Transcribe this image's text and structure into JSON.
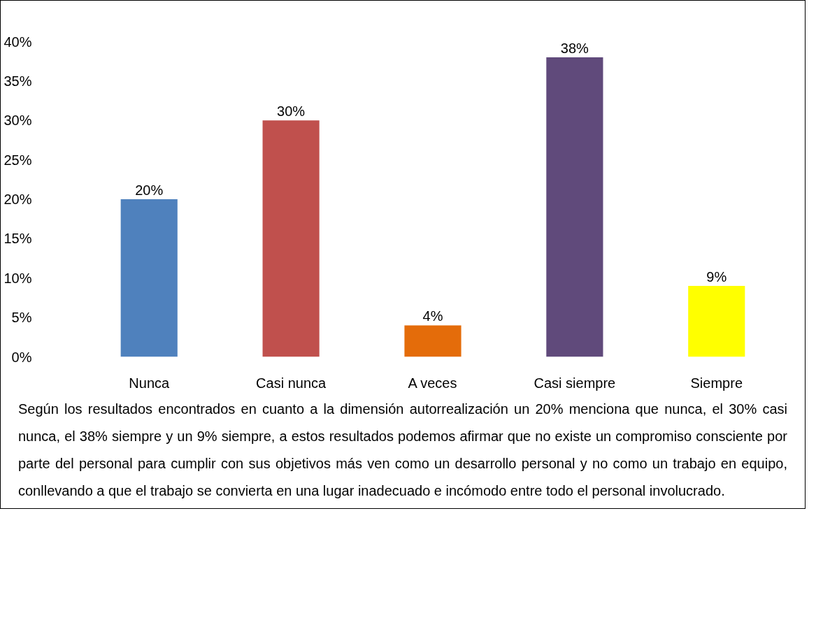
{
  "chart_data": {
    "type": "bar",
    "categories": [
      "Nunca",
      "Casi nunca",
      "A veces",
      "Casi siempre",
      "Siempre"
    ],
    "values": [
      20,
      30,
      4,
      38,
      9
    ],
    "colors": [
      "#4f81bd",
      "#c0504d",
      "#e46c0a",
      "#604a7b",
      "#ffff00"
    ],
    "value_labels": [
      "20%",
      "30%",
      "4%",
      "38%",
      "9%"
    ],
    "ylim": [
      0,
      40
    ],
    "yticks": [
      {
        "value": 0,
        "label": "0%"
      },
      {
        "value": 5,
        "label": "5%"
      },
      {
        "value": 10,
        "label": "10%"
      },
      {
        "value": 15,
        "label": "15%"
      },
      {
        "value": 20,
        "label": "20%"
      },
      {
        "value": 25,
        "label": "25%"
      },
      {
        "value": 30,
        "label": "30%"
      },
      {
        "value": 35,
        "label": "35%"
      },
      {
        "value": 40,
        "label": "40%"
      }
    ],
    "grid": false,
    "annotations": [
      "Según los resultados encontrados en cuanto a la dimensión autorrealización un 20% menciona que nunca, el 30% casi nunca, el 38% siempre y un 9% siempre, a estos resultados podemos afirmar que no existe un compromiso consciente por parte del personal para cumplir con sus objetivos más ven como un desarrollo personal y no como un trabajo en equipo, conllevando a que el trabajo se convierta en una lugar inadecuado e incómodo entre todo el personal involucrado."
    ]
  }
}
